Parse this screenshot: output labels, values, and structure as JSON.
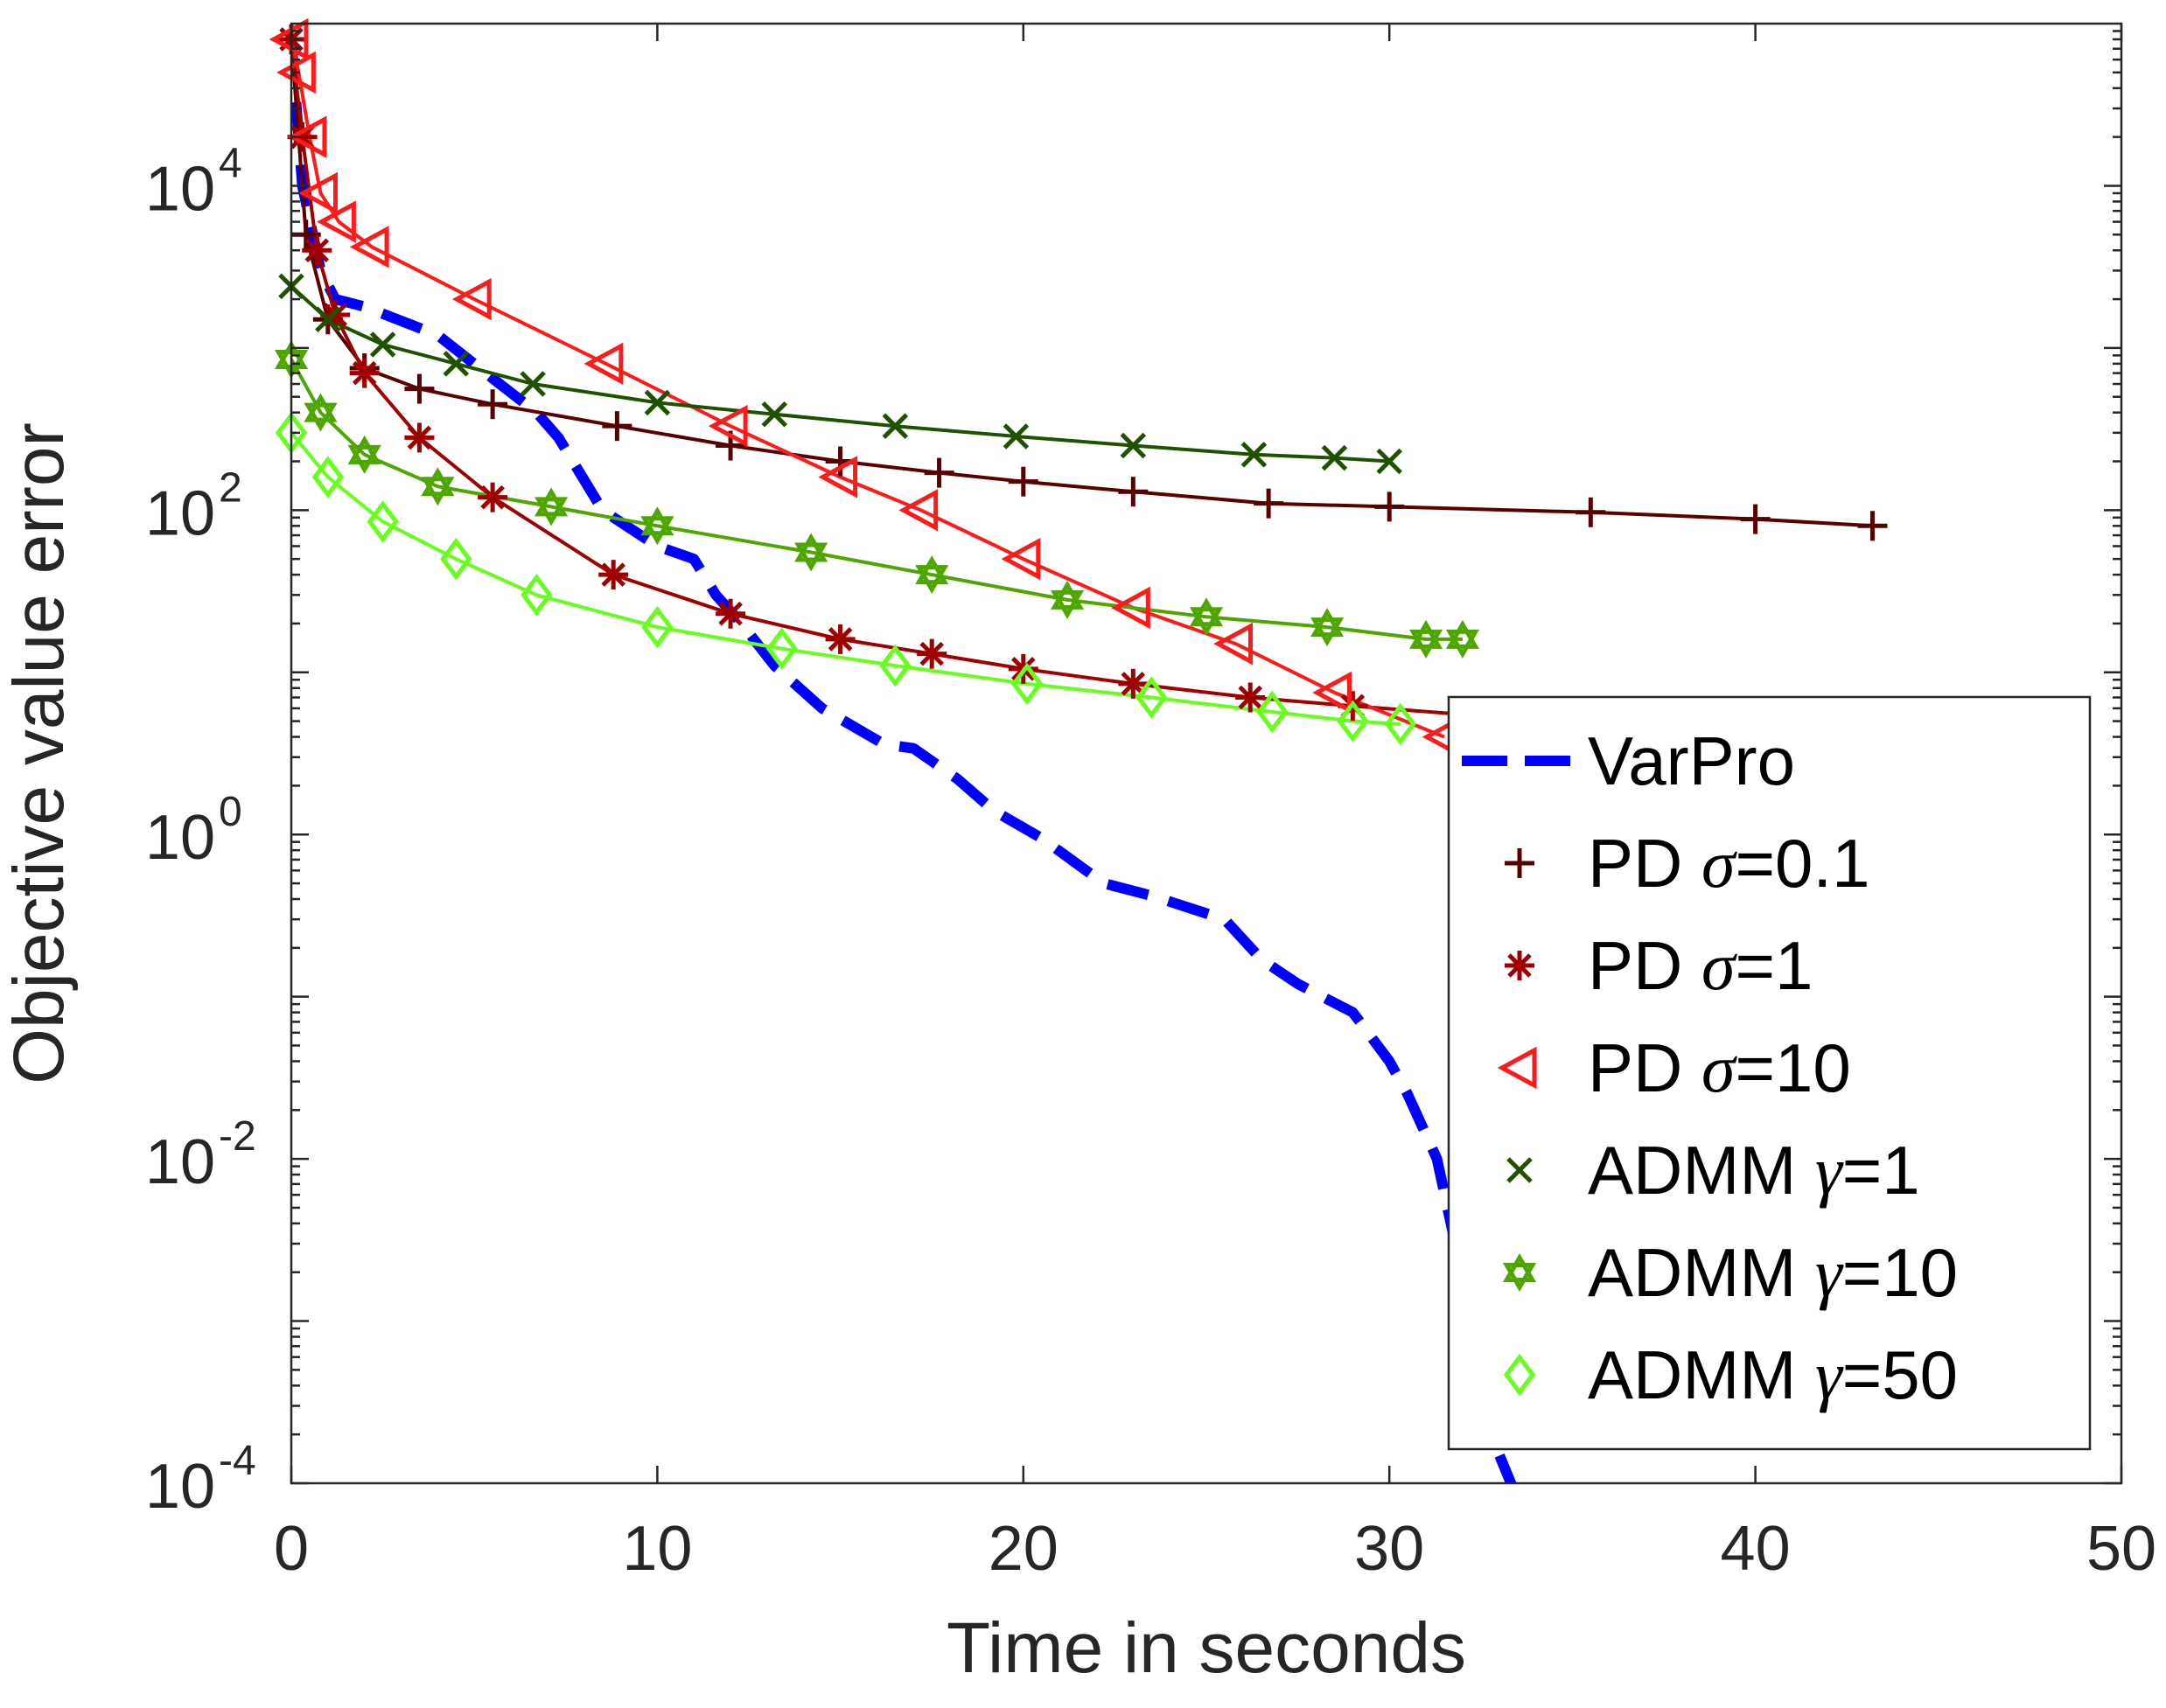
{
  "chart_data": {
    "type": "line",
    "xlabel": "Time in seconds",
    "ylabel": "Objective value error",
    "xlim": [
      0,
      50
    ],
    "ylim": [
      0.0001,
      100000
    ],
    "yscale": "log",
    "grid": false,
    "legend_position": "bottom-right",
    "xticks": [
      {
        "value": 0,
        "label": "0"
      },
      {
        "value": 10,
        "label": "10"
      },
      {
        "value": 20,
        "label": "20"
      },
      {
        "value": 30,
        "label": "30"
      },
      {
        "value": 40,
        "label": "40"
      },
      {
        "value": 50,
        "label": "50"
      }
    ],
    "yticks": [
      {
        "value": 0.0001,
        "base": "10",
        "exp": "-4"
      },
      {
        "value": 0.01,
        "base": "10",
        "exp": "-2"
      },
      {
        "value": 1,
        "base": "10",
        "exp": "0"
      },
      {
        "value": 100,
        "base": "10",
        "exp": "2"
      },
      {
        "value": 10000,
        "base": "10",
        "exp": "4"
      }
    ],
    "series": [
      {
        "name": "VarPro",
        "prefix": "VarPro",
        "symbol": "",
        "suffix": "",
        "color": "#0000ff",
        "marker": "none",
        "dashed": true,
        "x": [
          0,
          0.3,
          0.8,
          1.2,
          2.0,
          4.0,
          5.5,
          6.7,
          7.3,
          8.5,
          10.0,
          11.0,
          11.6,
          12.3,
          13.2,
          14.5,
          16.2,
          17.0,
          18.2,
          19.2,
          20.5,
          22.2,
          23.5,
          25.5,
          26.5,
          27.5,
          29.0,
          30.0,
          30.5,
          31.3,
          31.8,
          32.2,
          32.6,
          33.0,
          33.5,
          34.0
        ],
        "y": [
          80000,
          10000,
          3000,
          2000,
          1800,
          1200,
          650,
          400,
          280,
          100,
          60,
          50,
          30,
          20,
          11,
          6,
          3.6,
          3.4,
          2.2,
          1.4,
          0.95,
          0.5,
          0.42,
          0.3,
          0.17,
          0.12,
          0.08,
          0.04,
          0.025,
          0.01,
          0.003,
          0.0008,
          0.0003,
          0.00015,
          8e-05,
          5e-05
        ]
      },
      {
        "name": "PD σ=0.1",
        "prefix": "PD ",
        "symbol": "σ",
        "suffix": "=0.1",
        "color": "#5a0000",
        "marker": "plus",
        "dashed": false,
        "x": [
          0,
          0.4,
          1.0,
          2.0,
          3.5,
          5.5,
          8.9,
          12.0,
          15.0,
          17.7,
          20.0,
          23.0,
          26.7,
          30.0,
          35.5,
          40.0,
          43.2
        ],
        "y": [
          80000,
          5000,
          1500,
          750,
          560,
          450,
          330,
          250,
          200,
          170,
          150,
          130,
          110,
          105,
          97,
          88,
          80
        ]
      },
      {
        "name": "PD σ=1",
        "prefix": "PD ",
        "symbol": "σ",
        "suffix": "=1",
        "color": "#a00000",
        "marker": "star",
        "dashed": false,
        "x": [
          0,
          0.3,
          0.7,
          1.2,
          2.0,
          3.5,
          5.5,
          8.8,
          12.0,
          15.0,
          17.5,
          20.0,
          23.0,
          26.2,
          29.0,
          32.0
        ],
        "y": [
          80000,
          20000,
          4000,
          1600,
          700,
          280,
          120,
          40,
          23,
          16,
          13,
          10.5,
          8.5,
          7,
          6.2,
          5.5
        ]
      },
      {
        "name": "PD σ=10",
        "prefix": "PD ",
        "symbol": "σ",
        "suffix": "=10",
        "color": "#ff1a1a",
        "marker": "triangle-left",
        "dashed": false,
        "x": [
          0,
          0.2,
          0.5,
          0.8,
          1.3,
          2.2,
          5.0,
          8.6,
          12.0,
          15.0,
          17.2,
          20.0,
          23.0,
          25.8,
          28.5,
          31.5
        ],
        "y": [
          80000,
          50000,
          20000,
          9000,
          6000,
          4200,
          2000,
          800,
          330,
          160,
          100,
          50,
          25,
          15,
          7.5,
          4
        ]
      },
      {
        "name": "ADMM γ=1",
        "prefix": "ADMM ",
        "symbol": "γ",
        "suffix": "=1",
        "color": "#1f5200",
        "marker": "cross",
        "dashed": false,
        "x": [
          0,
          1.0,
          2.5,
          4.5,
          6.6,
          10.0,
          13.2,
          16.5,
          19.8,
          23.0,
          26.3,
          28.5,
          30.0
        ],
        "y": [
          2400,
          1500,
          1050,
          800,
          600,
          460,
          390,
          330,
          285,
          250,
          220,
          210,
          200
        ]
      },
      {
        "name": "ADMM γ=10",
        "prefix": "ADMM ",
        "symbol": "γ",
        "suffix": "=10",
        "color": "#4ea600",
        "marker": "hexagram",
        "dashed": false,
        "x": [
          0,
          0.8,
          2.0,
          4.0,
          7.1,
          10.0,
          14.2,
          17.5,
          21.2,
          25.0,
          28.3,
          31.0,
          32.0
        ],
        "y": [
          850,
          400,
          220,
          140,
          105,
          80,
          55,
          40,
          28,
          22,
          19,
          16,
          16
        ]
      },
      {
        "name": "ADMM γ=50",
        "prefix": "ADMM ",
        "symbol": "γ",
        "suffix": "=50",
        "color": "#66ff1a",
        "marker": "diamond",
        "dashed": false,
        "x": [
          0,
          1.0,
          2.5,
          4.5,
          6.7,
          10.0,
          13.4,
          16.5,
          20.1,
          23.5,
          26.8,
          29.0,
          30.3
        ],
        "y": [
          300,
          160,
          85,
          50,
          30,
          19,
          14,
          11,
          8.5,
          7,
          5.7,
          5,
          4.8
        ]
      }
    ]
  }
}
